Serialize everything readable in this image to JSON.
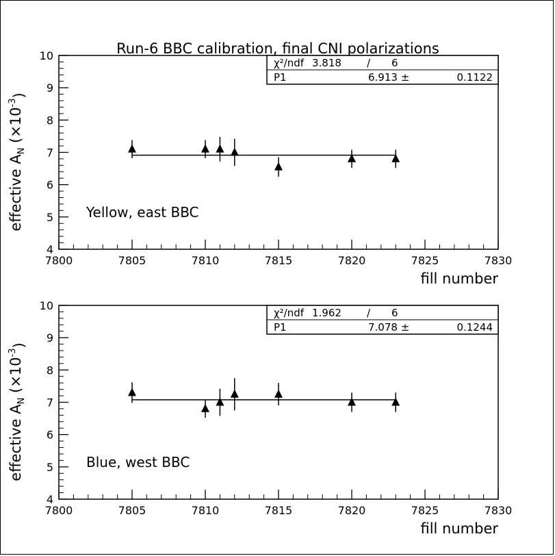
{
  "chart_data": [
    {
      "type": "scatter",
      "title": "Run-6 BBC calibration, final CNI polarizations",
      "xlabel": "fill number",
      "ylabel": "effective A_N (×10^-3)",
      "xlim": [
        7800,
        7830
      ],
      "ylim": [
        4,
        10
      ],
      "xticks": [
        "7800",
        "7805",
        "7810",
        "7815",
        "7820",
        "7825",
        "7830"
      ],
      "yticks": [
        "4",
        "5",
        "6",
        "7",
        "8",
        "9",
        "10"
      ],
      "label": "Yellow, east BBC",
      "fit": {
        "value": 6.913,
        "x_range": [
          7805,
          7823
        ]
      },
      "stats": {
        "chi2_label": "χ²/ndf",
        "chi2": "3.818",
        "sep": "/",
        "ndf": "6",
        "param_label": "P1",
        "param_value": "6.913 ±",
        "param_error": "0.1122"
      },
      "points": [
        {
          "x": 7805,
          "y": 7.1,
          "err": 0.28
        },
        {
          "x": 7810,
          "y": 7.1,
          "err": 0.28
        },
        {
          "x": 7811,
          "y": 7.1,
          "err": 0.38
        },
        {
          "x": 7812,
          "y": 7.0,
          "err": 0.42
        },
        {
          "x": 7815,
          "y": 6.55,
          "err": 0.3
        },
        {
          "x": 7820,
          "y": 6.8,
          "err": 0.28
        },
        {
          "x": 7823,
          "y": 6.8,
          "err": 0.28
        }
      ]
    },
    {
      "type": "scatter",
      "xlabel": "fill number",
      "ylabel": "effective A_N (×10^-3)",
      "xlim": [
        7800,
        7830
      ],
      "ylim": [
        4,
        10
      ],
      "xticks": [
        "7800",
        "7805",
        "7810",
        "7815",
        "7820",
        "7825",
        "7830"
      ],
      "yticks": [
        "4",
        "5",
        "6",
        "7",
        "8",
        "9",
        "10"
      ],
      "label": "Blue, west BBC",
      "fit": {
        "value": 7.078,
        "x_range": [
          7805,
          7823
        ]
      },
      "stats": {
        "chi2_label": "χ²/ndf",
        "chi2": "1.962",
        "sep": "/",
        "ndf": "6",
        "param_label": "P1",
        "param_value": "7.078 ±",
        "param_error": "0.1244"
      },
      "points": [
        {
          "x": 7805,
          "y": 7.3,
          "err": 0.32
        },
        {
          "x": 7810,
          "y": 6.8,
          "err": 0.28
        },
        {
          "x": 7811,
          "y": 7.0,
          "err": 0.42
        },
        {
          "x": 7812,
          "y": 7.25,
          "err": 0.5
        },
        {
          "x": 7815,
          "y": 7.25,
          "err": 0.35
        },
        {
          "x": 7820,
          "y": 7.0,
          "err": 0.3
        },
        {
          "x": 7823,
          "y": 7.0,
          "err": 0.3
        }
      ]
    }
  ]
}
